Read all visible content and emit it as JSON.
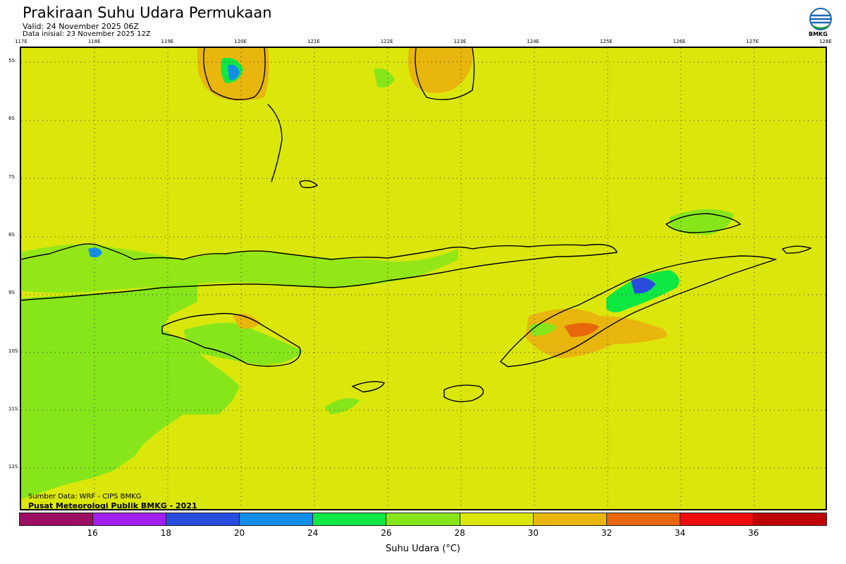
{
  "header": {
    "title": "Prakiraan Suhu Udara Permukaan",
    "valid": "Valid: 24 November 2025 06Z",
    "initial": "Data inisial: 23 November 2025 12Z"
  },
  "logo": {
    "icon": "bmkg-logo-icon",
    "text": "BMKG"
  },
  "map": {
    "lon_labels": [
      "117E",
      "118E",
      "119E",
      "120E",
      "121E",
      "122E",
      "123E",
      "124E",
      "125E",
      "126E",
      "127E",
      "128E"
    ],
    "lat_labels": [
      "5S",
      "6S",
      "7S",
      "8S",
      "9S",
      "10S",
      "11S",
      "12S"
    ],
    "background_color": "#dbe70a",
    "credits": [
      "Sumber Data: WRF - CIPS BMKG",
      "Pusat Meteorologi Publik BMKG - 2021"
    ]
  },
  "colorbar": {
    "colors": [
      "#9c0e62",
      "#a11ef0",
      "#2a4de0",
      "#128ee8",
      "#0ee843",
      "#86e61a",
      "#dbe70a",
      "#e8b60c",
      "#e8670c",
      "#f00c0c",
      "#bf0000"
    ],
    "ticks": [
      "16",
      "18",
      "20",
      "24",
      "26",
      "28",
      "30",
      "32",
      "34",
      "36"
    ],
    "label": "Suhu Udara (°C)"
  }
}
